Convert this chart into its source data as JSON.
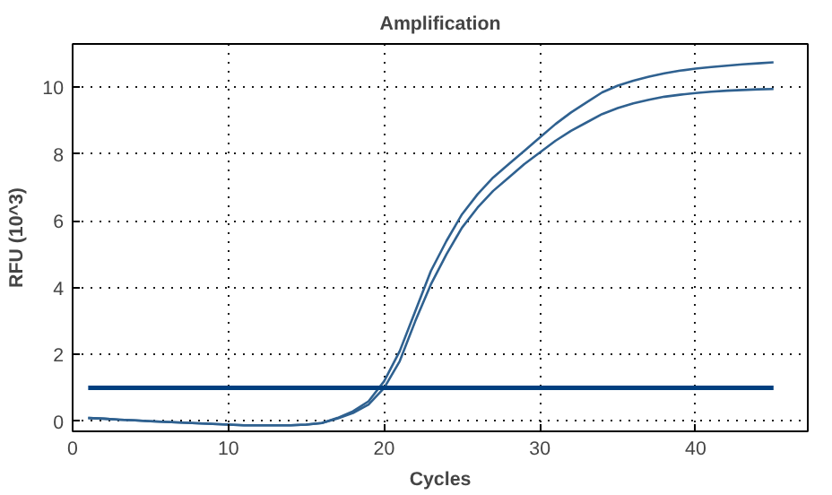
{
  "chart_data": {
    "type": "line",
    "title": "Amplification",
    "xlabel": "Cycles",
    "ylabel": "RFU (10^3)",
    "x": [
      1,
      2,
      3,
      4,
      5,
      6,
      7,
      8,
      9,
      10,
      11,
      12,
      13,
      14,
      15,
      16,
      17,
      18,
      19,
      20,
      21,
      22,
      23,
      24,
      25,
      26,
      27,
      28,
      29,
      30,
      31,
      32,
      33,
      34,
      35,
      36,
      37,
      38,
      39,
      40,
      41,
      42,
      43,
      44,
      45
    ],
    "series": [
      {
        "color": "#2f6190",
        "values": [
          0.1,
          0.08,
          0.05,
          0.03,
          0.0,
          -0.02,
          -0.04,
          -0.06,
          -0.08,
          -0.1,
          -0.12,
          -0.12,
          -0.12,
          -0.12,
          -0.1,
          -0.05,
          0.1,
          0.3,
          0.6,
          1.2,
          2.1,
          3.3,
          4.5,
          5.4,
          6.2,
          6.8,
          7.3,
          7.7,
          8.1,
          8.5,
          8.9,
          9.25,
          9.55,
          9.85,
          10.05,
          10.2,
          10.32,
          10.42,
          10.5,
          10.56,
          10.61,
          10.65,
          10.69,
          10.72,
          10.75
        ]
      },
      {
        "color": "#2f6190",
        "values": [
          0.1,
          0.08,
          0.05,
          0.03,
          0.0,
          -0.02,
          -0.04,
          -0.06,
          -0.08,
          -0.1,
          -0.12,
          -0.12,
          -0.12,
          -0.12,
          -0.1,
          -0.05,
          0.08,
          0.25,
          0.5,
          1.0,
          1.8,
          3.0,
          4.1,
          5.0,
          5.8,
          6.4,
          6.9,
          7.3,
          7.7,
          8.05,
          8.4,
          8.7,
          8.95,
          9.2,
          9.38,
          9.52,
          9.63,
          9.72,
          9.78,
          9.83,
          9.87,
          9.9,
          9.92,
          9.94,
          9.95
        ]
      },
      {
        "color": "#003f7f",
        "x": [
          1,
          45
        ],
        "values": [
          1,
          1
        ]
      }
    ],
    "xlim": [
      0,
      47.2
    ],
    "ylim": [
      -0.3,
      11.3
    ],
    "xticks": [
      0,
      10,
      20,
      30,
      40
    ],
    "yticks": [
      0,
      2,
      4,
      6,
      8,
      10
    ],
    "grid": true,
    "line_style": "solid",
    "marker": "none"
  }
}
